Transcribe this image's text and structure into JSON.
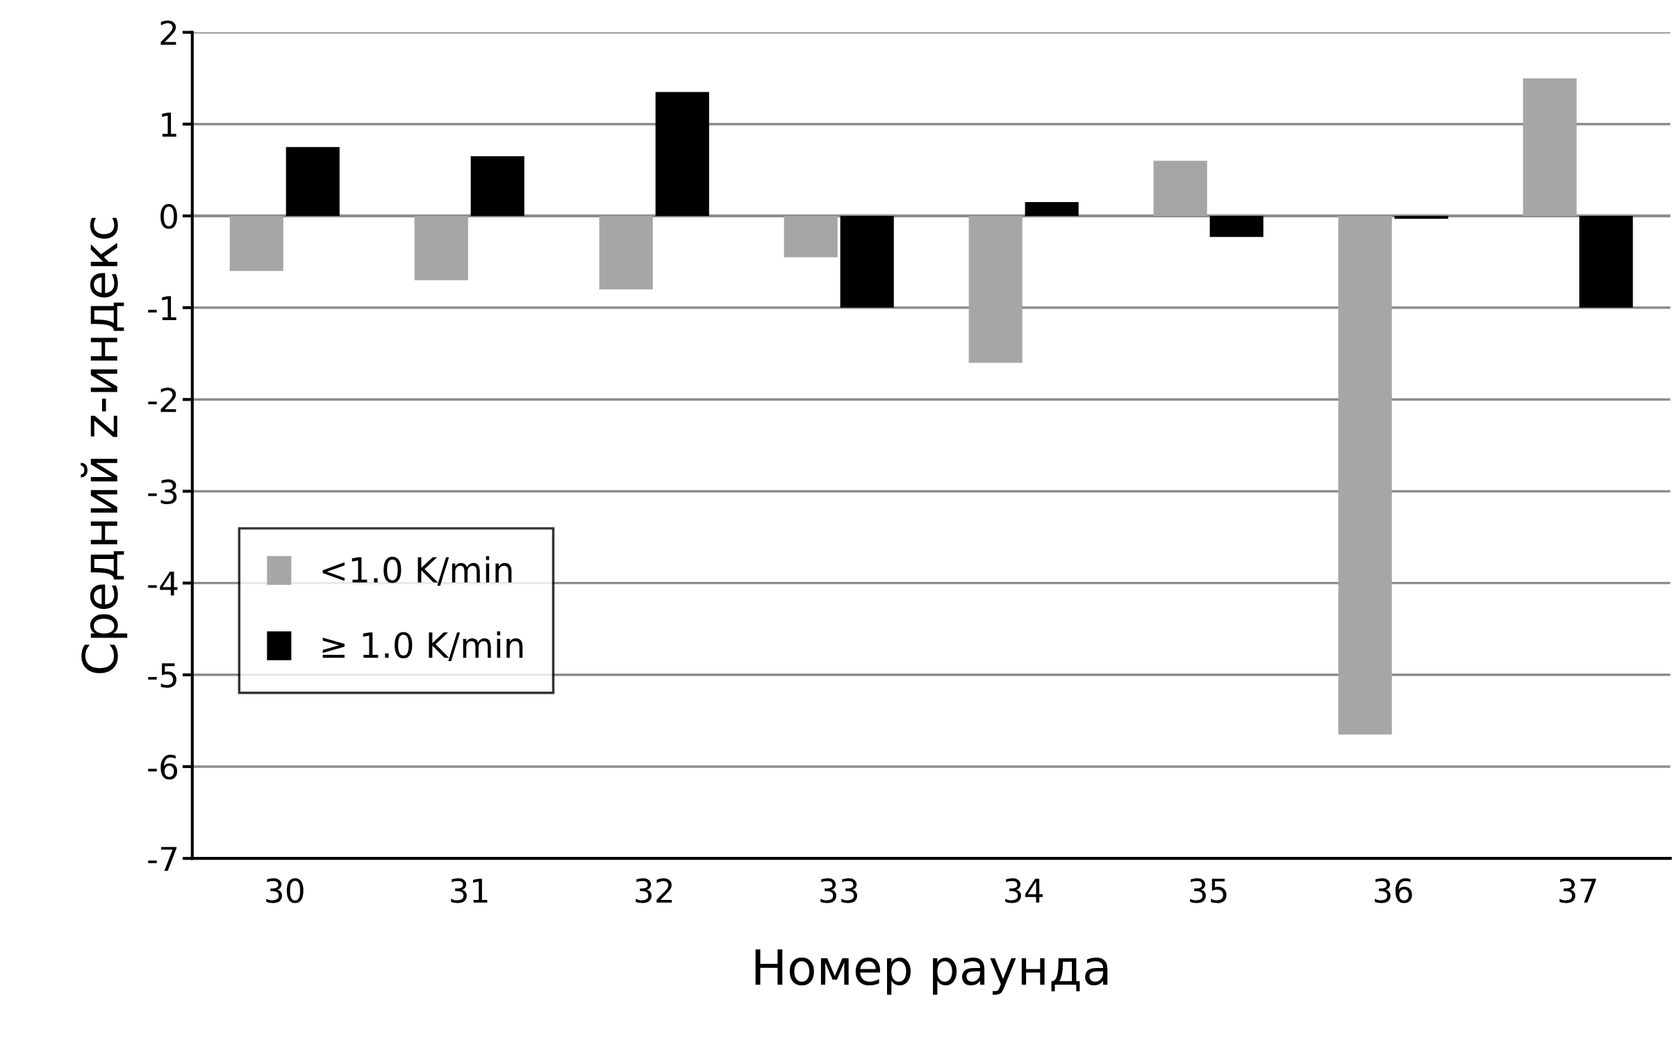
{
  "chart_data": {
    "type": "bar",
    "xlabel": "Номер раунда",
    "ylabel": "Средний z-индекс",
    "categories": [
      "30",
      "31",
      "32",
      "33",
      "34",
      "35",
      "36",
      "37"
    ],
    "series": [
      {
        "name": "<1.0 K/min",
        "color": "#a6a6a6",
        "values": [
          -0.6,
          -0.7,
          -0.8,
          -0.45,
          -1.6,
          0.6,
          -5.65,
          1.5
        ]
      },
      {
        "name": "≥ 1.0 K/min",
        "color": "#000000",
        "values": [
          0.75,
          0.65,
          1.35,
          -1.0,
          0.15,
          -0.23,
          -0.03,
          -1.0
        ]
      }
    ],
    "ylim": [
      -7,
      2
    ],
    "yticks": [
      {
        "value": -7,
        "label": "-7"
      },
      {
        "value": -6,
        "label": "-6"
      },
      {
        "value": -5,
        "label": "-5"
      },
      {
        "value": -4,
        "label": "-4"
      },
      {
        "value": -3,
        "label": "-3"
      },
      {
        "value": -2,
        "label": "-2"
      },
      {
        "value": -1,
        "label": "-1"
      },
      0,
      1,
      2
    ],
    "grid": "y",
    "legend": "left"
  }
}
